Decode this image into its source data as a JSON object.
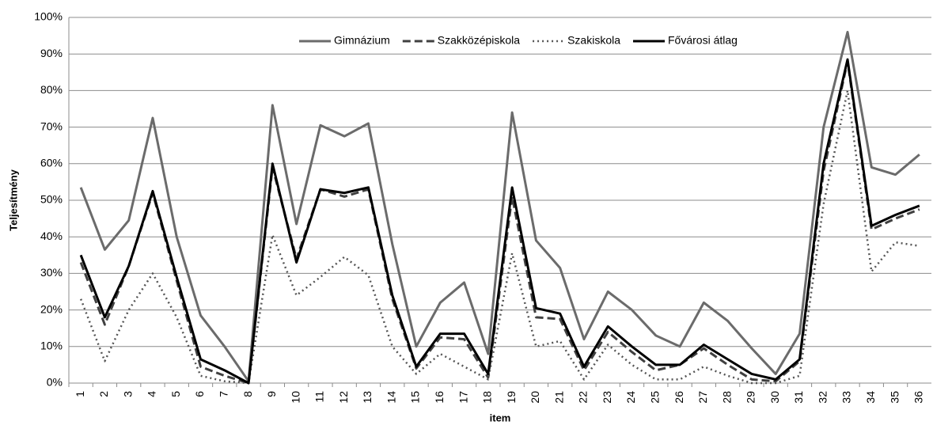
{
  "chart_data": {
    "type": "line",
    "x_label": "item",
    "y_label": "Teljesítmény",
    "categories": [
      "1",
      "2",
      "3",
      "4",
      "5",
      "6",
      "7",
      "8",
      "9",
      "10",
      "11",
      "12",
      "13",
      "14",
      "15",
      "16",
      "17",
      "18",
      "19",
      "20",
      "21",
      "22",
      "23",
      "24",
      "25",
      "26",
      "27",
      "28",
      "29",
      "30",
      "31",
      "32",
      "33",
      "34",
      "35",
      "36"
    ],
    "series": [
      {
        "name": "Gimnázium",
        "color": "#6b6b6b",
        "dash": "solid",
        "values": [
          53.5,
          36.5,
          44.5,
          72.5,
          40,
          18.5,
          10,
          0.5,
          76,
          43.5,
          70.5,
          67.5,
          71,
          38,
          10,
          22,
          27.5,
          8,
          74,
          39,
          31.5,
          12,
          25,
          20,
          13,
          10,
          22,
          17,
          9.5,
          2.5,
          13.5,
          70,
          96,
          59,
          57,
          62.5
        ]
      },
      {
        "name": "Szakközépiskola",
        "color": "#404040",
        "dash": "dashed",
        "values": [
          33,
          16,
          32,
          52,
          28,
          4.5,
          2,
          0,
          59,
          34,
          53,
          51,
          53,
          23,
          4,
          12.5,
          12,
          1.5,
          51,
          18,
          17.5,
          3.5,
          14,
          8.5,
          3.5,
          5,
          9.5,
          5,
          1,
          0.5,
          6,
          58,
          88,
          42,
          45,
          47.5
        ]
      },
      {
        "name": "Szakiskola",
        "color": "#555555",
        "dash": "dotted",
        "values": [
          23,
          6,
          20,
          30,
          18,
          2,
          0.5,
          0,
          40.5,
          24,
          29,
          34.5,
          29.5,
          10,
          2.5,
          8,
          4.5,
          1,
          35.5,
          10,
          11.5,
          1,
          10.5,
          5,
          1,
          1,
          4.5,
          2,
          0,
          0,
          2,
          49,
          80,
          30.5,
          38.5,
          37.5
        ]
      },
      {
        "name": "Fővárosi átlag",
        "color": "#000000",
        "dash": "solid",
        "values": [
          35,
          18,
          32,
          52.5,
          29,
          6.5,
          3.5,
          0,
          60,
          33,
          53,
          52,
          53.5,
          24,
          4.5,
          13.5,
          13.5,
          2.5,
          53.5,
          20.5,
          19,
          4.5,
          15.5,
          10,
          5,
          5,
          10.5,
          6.5,
          2.5,
          1,
          6.5,
          60,
          88.5,
          43,
          46,
          48.5
        ]
      }
    ],
    "ylim": [
      0,
      100
    ],
    "yticks": [
      {
        "value": 0,
        "label": "0%"
      },
      {
        "value": 10,
        "label": "10%"
      },
      {
        "value": 20,
        "label": "20%"
      },
      {
        "value": 30,
        "label": "30%"
      },
      {
        "value": 40,
        "label": "40%"
      },
      {
        "value": 50,
        "label": "50%"
      },
      {
        "value": 60,
        "label": "60%"
      },
      {
        "value": 70,
        "label": "70%"
      },
      {
        "value": 80,
        "label": "80%"
      },
      {
        "value": 90,
        "label": "90%"
      },
      {
        "value": 100,
        "label": "100%"
      }
    ],
    "grid": true,
    "legend": "top"
  }
}
